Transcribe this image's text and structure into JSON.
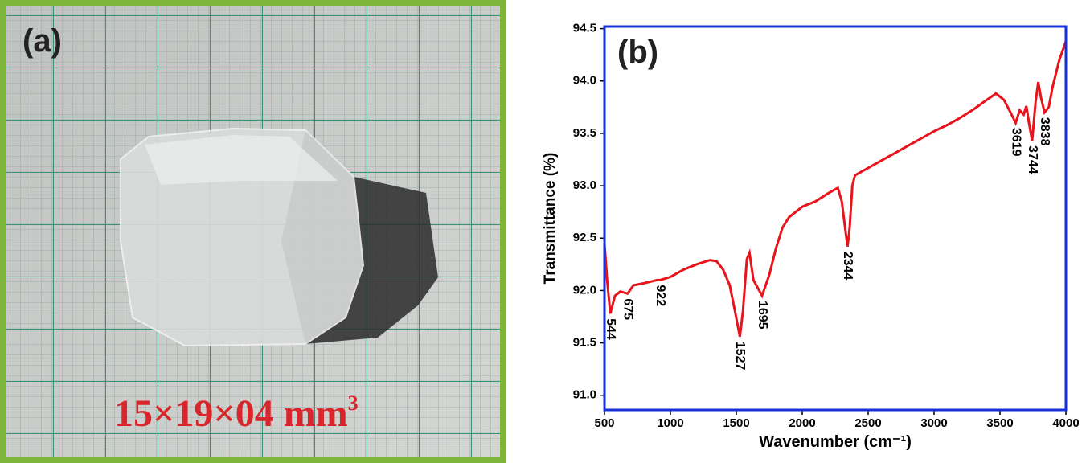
{
  "panel_a": {
    "label": "(a)",
    "caption": "15×19×04 mm",
    "caption_sup": "3"
  },
  "chart_data": {
    "type": "line",
    "label": "(b)",
    "xlabel": "Wavenumber (cm⁻¹)",
    "ylabel": "Transmittance (%)",
    "color": "#e8141c",
    "x": [
      500,
      520,
      544,
      580,
      620,
      675,
      720,
      800,
      900,
      922,
      1000,
      1100,
      1200,
      1300,
      1350,
      1400,
      1450,
      1490,
      1527,
      1550,
      1580,
      1600,
      1630,
      1695,
      1750,
      1800,
      1850,
      1900,
      2000,
      2100,
      2200,
      2270,
      2300,
      2330,
      2344,
      2360,
      2380,
      2400,
      2500,
      2600,
      2700,
      2800,
      2900,
      3000,
      3100,
      3200,
      3300,
      3400,
      3470,
      3530,
      3580,
      3619,
      3650,
      3680,
      3700,
      3720,
      3744,
      3770,
      3790,
      3810,
      3838,
      3870,
      3900,
      3950,
      4000
    ],
    "values": [
      92.45,
      92.1,
      91.78,
      91.95,
      91.99,
      91.97,
      92.05,
      92.07,
      92.1,
      92.1,
      92.13,
      92.2,
      92.25,
      92.29,
      92.28,
      92.2,
      92.05,
      91.8,
      91.56,
      91.8,
      92.3,
      92.36,
      92.1,
      91.95,
      92.15,
      92.4,
      92.6,
      92.7,
      92.8,
      92.85,
      92.93,
      92.98,
      92.85,
      92.55,
      92.42,
      92.6,
      93.0,
      93.1,
      93.17,
      93.24,
      93.31,
      93.38,
      93.45,
      93.52,
      93.58,
      93.65,
      93.73,
      93.82,
      93.88,
      93.82,
      93.7,
      93.6,
      93.72,
      93.68,
      93.76,
      93.6,
      93.43,
      93.8,
      93.99,
      93.85,
      93.7,
      93.75,
      93.95,
      94.2,
      94.38
    ],
    "peak_labels": [
      544,
      675,
      922,
      1527,
      1695,
      2344,
      3619,
      3744,
      3838
    ],
    "xlim": [
      500,
      4000
    ],
    "xticks": [
      500,
      1000,
      1500,
      2000,
      2500,
      3000,
      3500,
      4000
    ],
    "ylim": [
      90.86,
      94.52
    ],
    "yticks": [
      {
        "value": 91,
        "label": "91.0"
      },
      {
        "value": 91.5,
        "label": "91.5"
      },
      {
        "value": 92,
        "label": "92.0"
      },
      {
        "value": 92.5,
        "label": "92.5"
      },
      {
        "value": 93,
        "label": "93.0"
      },
      {
        "value": 93.5,
        "label": "93.5"
      },
      {
        "value": 94,
        "label": "94.0"
      },
      {
        "value": 94.5,
        "label": "94.5"
      }
    ]
  }
}
